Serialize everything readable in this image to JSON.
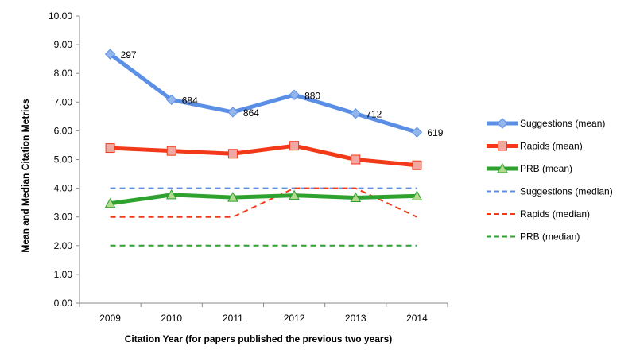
{
  "chart_data": {
    "type": "line",
    "title": "",
    "xlabel": "Citation Year (for papers published the previous two years)",
    "ylabel": "Mean and Median Citation Metrics",
    "categories": [
      "2009",
      "2010",
      "2011",
      "2012",
      "2013",
      "2014"
    ],
    "ylim": [
      0,
      10
    ],
    "ytick_labels": [
      "0.00",
      "1.00",
      "2.00",
      "3.00",
      "4.00",
      "5.00",
      "6.00",
      "7.00",
      "8.00",
      "9.00",
      "10.00"
    ],
    "grid": false,
    "legend_position": "right",
    "series": [
      {
        "name": "Suggestions (mean)",
        "values": [
          8.67,
          7.08,
          6.65,
          7.25,
          6.6,
          5.95
        ],
        "color": "#5b8fe6",
        "style": "solid",
        "marker": "diamond",
        "marker_fill": "#93b6ec",
        "data_labels": [
          "297",
          "684",
          "864",
          "880",
          "712",
          "619"
        ]
      },
      {
        "name": "Rapids (mean)",
        "values": [
          5.4,
          5.3,
          5.2,
          5.48,
          5.0,
          4.8
        ],
        "color": "#f23a1a",
        "style": "solid",
        "marker": "square",
        "marker_fill": "#f1a8a2"
      },
      {
        "name": "PRB (mean)",
        "values": [
          3.47,
          3.77,
          3.68,
          3.75,
          3.67,
          3.73
        ],
        "color": "#2ea12e",
        "style": "solid",
        "marker": "triangle",
        "marker_fill": "#b4d98e"
      },
      {
        "name": "Suggestions (median)",
        "values": [
          4,
          4,
          4,
          4,
          4,
          4
        ],
        "color": "#5b8fe6",
        "style": "dashed",
        "marker": "none"
      },
      {
        "name": "Rapids (median)",
        "values": [
          3,
          3,
          3,
          4,
          4,
          3
        ],
        "color": "#f23a1a",
        "style": "dashed",
        "marker": "none"
      },
      {
        "name": "PRB (median)",
        "values": [
          2,
          2,
          2,
          2,
          2,
          2
        ],
        "color": "#2ea12e",
        "style": "dashed",
        "marker": "none"
      }
    ]
  }
}
